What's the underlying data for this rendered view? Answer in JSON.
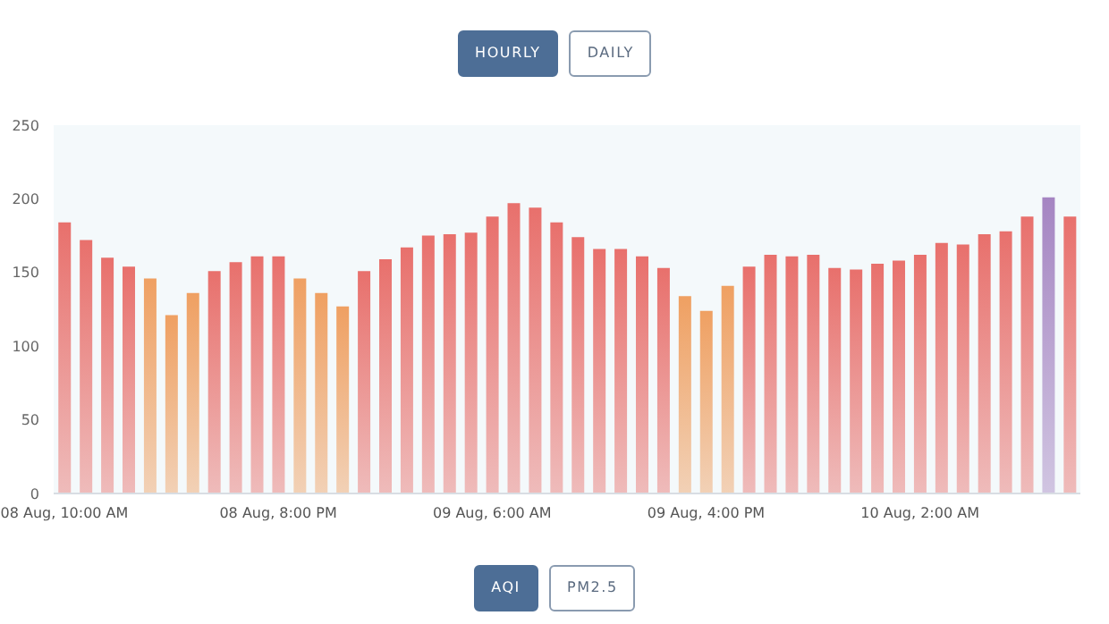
{
  "chart_data": {
    "type": "bar",
    "categories": [
      "08 Aug, 10:00 AM",
      null,
      null,
      null,
      null,
      null,
      null,
      null,
      null,
      null,
      "08 Aug, 8:00 PM",
      null,
      null,
      null,
      null,
      null,
      null,
      null,
      null,
      null,
      "09 Aug, 6:00 AM",
      null,
      null,
      null,
      null,
      null,
      null,
      null,
      null,
      null,
      "09 Aug, 4:00 PM",
      null,
      null,
      null,
      null,
      null,
      null,
      null,
      null,
      null,
      "10 Aug, 2:00 AM",
      null,
      null,
      null,
      null,
      null,
      null,
      null
    ],
    "values": [
      184,
      172,
      160,
      154,
      146,
      121,
      136,
      151,
      157,
      161,
      161,
      146,
      136,
      127,
      151,
      159,
      167,
      175,
      176,
      177,
      188,
      197,
      194,
      184,
      174,
      166,
      166,
      161,
      153,
      134,
      124,
      141,
      154,
      162,
      161,
      162,
      153,
      152,
      156,
      158,
      162,
      170,
      169,
      176,
      178,
      188,
      201,
      188
    ],
    "colors": [
      "#e8706c",
      "#e8706c",
      "#e8706c",
      "#e8706c",
      "#efa062",
      "#efa062",
      "#efa062",
      "#e8706c",
      "#e8706c",
      "#e8706c",
      "#e8706c",
      "#efa062",
      "#efa062",
      "#efa062",
      "#e8706c",
      "#e8706c",
      "#e8706c",
      "#e8706c",
      "#e8706c",
      "#e8706c",
      "#e8706c",
      "#e8706c",
      "#e8706c",
      "#e8706c",
      "#e8706c",
      "#e8706c",
      "#e8706c",
      "#e8706c",
      "#e8706c",
      "#efa062",
      "#efa062",
      "#efa062",
      "#e8706c",
      "#e8706c",
      "#e8706c",
      "#e8706c",
      "#e8706c",
      "#e8706c",
      "#e8706c",
      "#e8706c",
      "#e8706c",
      "#e8706c",
      "#e8706c",
      "#e8706c",
      "#e8706c",
      "#e8706c",
      "#a585c2",
      "#e8706c"
    ],
    "ylim": [
      0,
      250
    ],
    "yticks": [
      0,
      50,
      100,
      150,
      200,
      250
    ],
    "annotations": [
      "HOURLY",
      "DAILY",
      "AQI",
      "PM2.5"
    ]
  }
}
